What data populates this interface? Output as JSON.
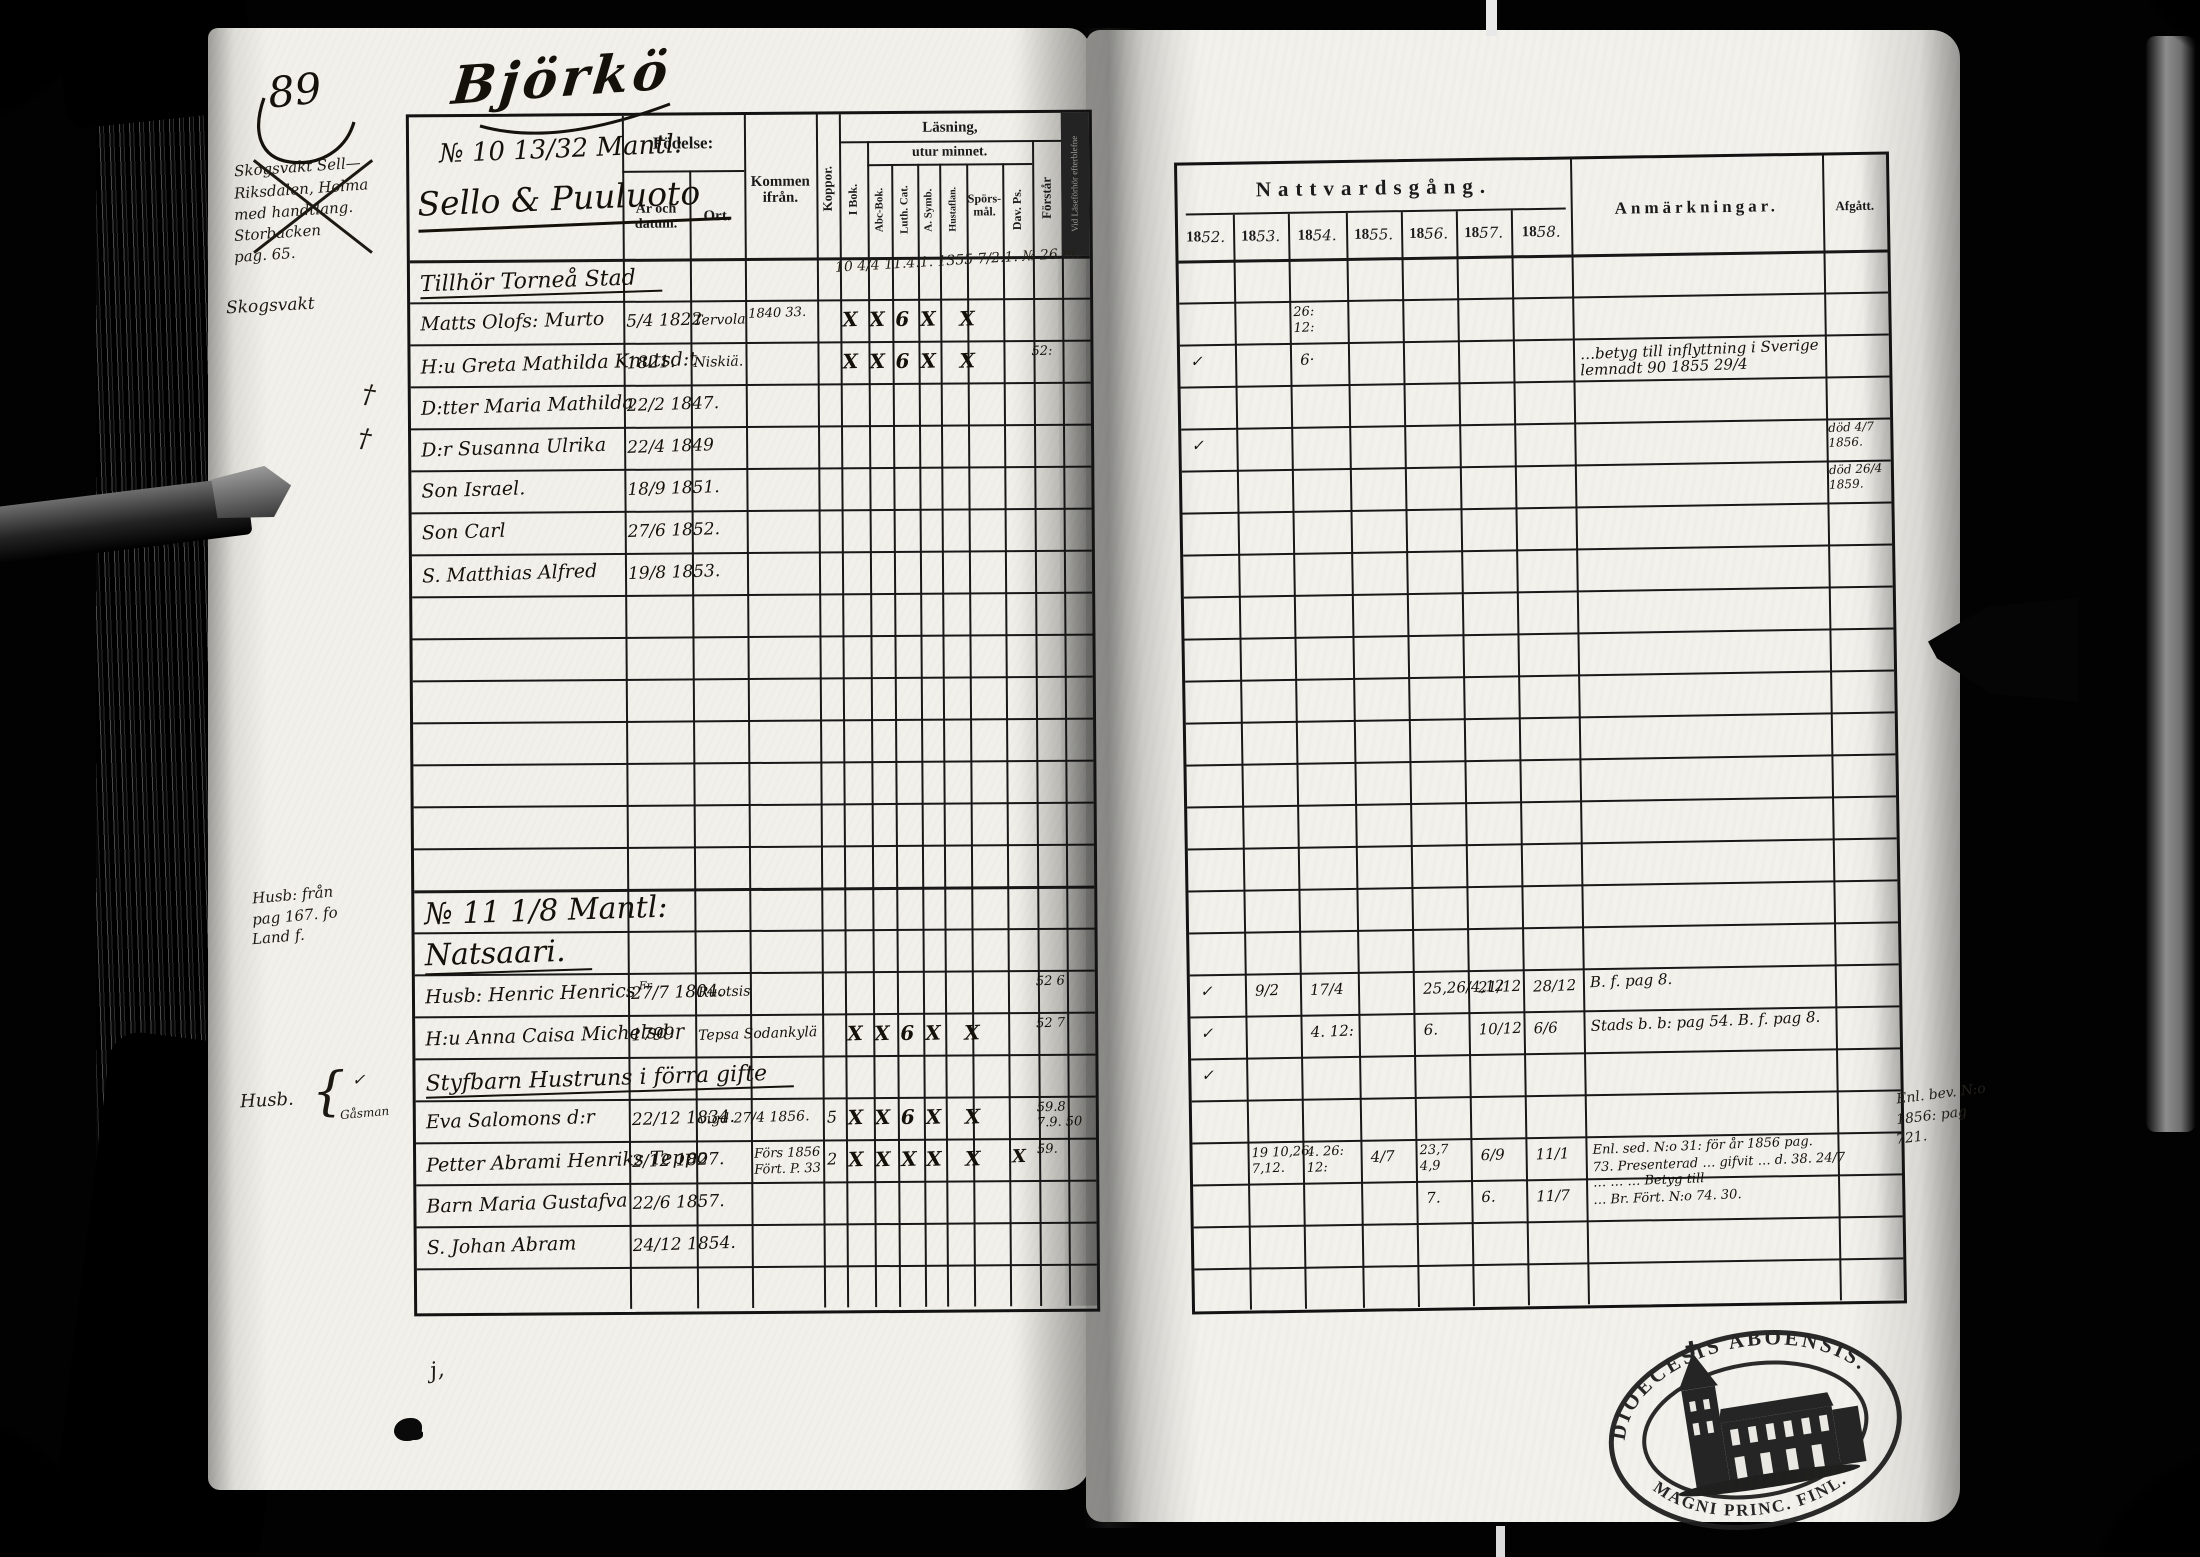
{
  "page_number": "89",
  "title": "Björkö",
  "left_table": {
    "household1_no": "№ 10 13/32 Mantl:",
    "household1_name": "Sello & Puuluoto",
    "headers": {
      "fodelse": "Födelse:",
      "ar_och_datum": "År och datum.",
      "ort": "Ort.",
      "kommen_ifran": "Kommen ifrån.",
      "koppor": "Koppor.",
      "lasning": "Läsning,",
      "utur_minnet": "utur minnet.",
      "i_bok": "I Bok.",
      "abc_bok": "Abc-Bok.",
      "luth_cat": "Luth. Cat.",
      "a_symb": "A. Symb.",
      "hustaflan": "Hustaflan.",
      "sporsmal_1": "Spörs-",
      "sporsmal_2": "mål.",
      "dav_ps": "Dav. Ps.",
      "forstar": "Förstår",
      "efterblifne": "Vid Läseförhör efterblefne"
    },
    "rows": [
      {
        "name": "Tillhör Torneå Stad",
        "name_wide": true,
        "scribble": "10 4/4 11.4.1. 1355 7/2.1.  № 26 m."
      },
      {
        "name": "Matts Olofs: Murto",
        "date": "5/4 1822",
        "ort": "Tervola",
        "kommen": [
          "1840  33."
        ],
        "marks": [
          "X",
          "X",
          "6",
          "X",
          "X"
        ]
      },
      {
        "name": "H:u Greta Mathilda Knutsd:t",
        "date": "1821.",
        "ort": "Niskiä.",
        "marks": [
          "X",
          "X",
          "6",
          "X",
          "X"
        ],
        "edge": [
          "52:"
        ]
      },
      {
        "name": "D:tter Maria Mathilda",
        "date": "22/2 1847."
      },
      {
        "name": "D:r Susanna Ulrika",
        "date": "22/4 1849"
      },
      {
        "name": "Son Israel.",
        "date": "18/9 1851."
      },
      {
        "name": "Son Carl",
        "date": "27/6 1852."
      },
      {
        "name": "S. Matthias Alfred",
        "date": "19/8 1853."
      },
      null,
      null,
      null,
      null,
      null,
      null,
      null,
      {
        "name": "№ 11 1/8 Mantl:",
        "big": true
      },
      {
        "name": "Natsaari.",
        "big": true,
        "uline": true
      },
      {
        "name": "Husb: Henric Henrics",
        "sup": "Fr",
        "date": "27/7 1804.",
        "ort": "Ruotsis",
        "edge": [
          "52 6"
        ]
      },
      {
        "name": "H:u Anna Caisa Michelsd:r",
        "date": "1799.",
        "ort": "Tepsa Sodankylä",
        "marks": [
          "X",
          "X",
          "6",
          "X",
          "X"
        ],
        "edge": [
          "52 7"
        ]
      },
      {
        "name": "Styfbarn Hustruns i förra gifte",
        "name_wide": true
      },
      {
        "name": "Eva Salomons d:r",
        "date": "22/12 1834.",
        "ort": "vigd 27/4 1856.",
        "koppor": "5",
        "marks": [
          "X",
          "X",
          "6",
          "X",
          "X"
        ],
        "edge": [
          "59.8",
          "7.9. 50"
        ]
      },
      {
        "name": "Petter Abrami Henriks Teppo",
        "date": "2/12 1827.",
        "kommen": [
          "Förs 1856",
          "Fört. P. 33"
        ],
        "koppor": "2",
        "marks": [
          "X",
          "X",
          "X",
          "X",
          "X"
        ],
        "extra_mark": "X",
        "edge": [
          "59."
        ]
      },
      {
        "name": "Barn Maria Gustafva",
        "date": "22/6 1857."
      },
      {
        "name": "S. Johan Abram",
        "date": "24/12 1854."
      },
      null
    ]
  },
  "right_table": {
    "title": "Nattvardsgång.",
    "year_prefix": "18",
    "years": [
      "52.",
      "53.",
      "54.",
      "55.",
      "56.",
      "57.",
      "58."
    ],
    "anmarkningar_label": "Anmärkningar.",
    "afgatt_label": "Afgått.",
    "rows": [
      null,
      {
        "y": {
          "54": [
            "26:",
            "12:"
          ]
        }
      },
      {
        "y": {
          "52": "✓",
          "54": "6·"
        },
        "anm": [
          "…betyg till inflyttning i Sverige",
          "lemnadt  90 1855 29/4"
        ]
      },
      null,
      {
        "y": {
          "52": "✓"
        },
        "afgatt": [
          "död 4/7",
          "1856."
        ]
      },
      {
        "afgatt": [
          "död 26/4",
          "1859."
        ]
      },
      null,
      null,
      null,
      null,
      null,
      null,
      null,
      null,
      null,
      null,
      null,
      {
        "y": {
          "52": "✓",
          "53": "9/2",
          "54": "17/4",
          "56": "25,26/4,12",
          "57": "21/12",
          "58": "28/12"
        },
        "anm": [
          "B. f. pag 8."
        ]
      },
      {
        "y": {
          "52": "✓",
          "54": "4. 12:",
          "56": "6.",
          "57": "10/12",
          "58": "6/6"
        },
        "anm": [
          "Stads b. b: pag 54. B. f. pag 8."
        ]
      },
      {
        "y": {
          "52": "✓"
        }
      },
      null,
      {
        "y": {
          "53": [
            "19 10,26",
            "7,12."
          ],
          "54": [
            "4. 26:",
            "12:"
          ],
          "55": "4/7",
          "56": [
            "23,7",
            "4,9"
          ],
          "57": "6/9",
          "58": "11/1"
        },
        "anm": [
          "Enl. sed. N:o 31: för år 1856 pag.",
          "73. Presenterad … gifvit … d. 38. 24/7",
          "… … … Betyg till",
          "… Br. Fört. N:o 74. 30."
        ]
      },
      {
        "y": {
          "56": "7.",
          "57": "6.",
          "58": "11/7"
        }
      },
      null,
      null
    ]
  },
  "margin_notes": {
    "crossed_block": {
      "lines": [
        "Skogsvakt Sell—",
        "Riksdalen, Holma",
        "med handtlang.",
        "Storbacken",
        "pag. 65."
      ]
    },
    "skogsvakt": "Skogsvakt",
    "cross_marks": [
      "†",
      "†"
    ],
    "husb_fran": {
      "lines": [
        "Husb: från",
        "pag 167. fo",
        "Land f."
      ]
    },
    "husb_brace": {
      "label": "Husb.",
      "brace": "{",
      "check": "✓",
      "sub": "Gåsman"
    },
    "right_page_note": {
      "lines": [
        "Enl. bev. N:o",
        "1856: pag",
        "721."
      ]
    },
    "bottom_mark": "j,"
  },
  "stamp": {
    "top_text": "DIOECESIS ABOENSIS.",
    "bottom_text": "MAGNI PRINC. FINL."
  }
}
